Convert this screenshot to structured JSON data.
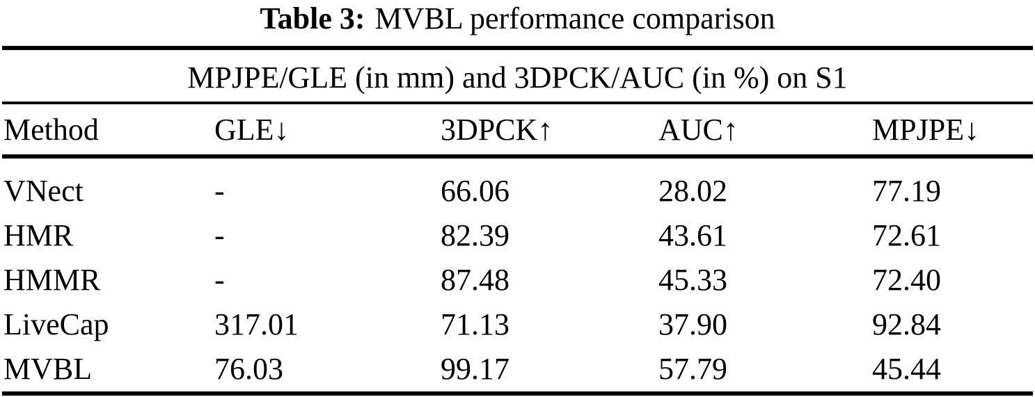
{
  "page": {
    "background_color": "#ffffff",
    "text_color": "#000000"
  },
  "caption": {
    "label": "Table 3:",
    "title": "MVBL performance comparison"
  },
  "table": {
    "span_header": "MPJPE/GLE (in mm) and 3DPCK/AUC (in %) on S1",
    "columns": [
      {
        "key": "method",
        "label": "Method"
      },
      {
        "key": "gle",
        "label": "GLE↓"
      },
      {
        "key": "pck3d",
        "label": "3DPCK↑"
      },
      {
        "key": "auc",
        "label": "AUC↑"
      },
      {
        "key": "mpjpe",
        "label": "MPJPE↓"
      }
    ],
    "rows": [
      {
        "method": "VNect",
        "gle": "-",
        "pck3d": "66.06",
        "auc": "28.02",
        "mpjpe": "77.19"
      },
      {
        "method": "HMR",
        "gle": "-",
        "pck3d": "82.39",
        "auc": "43.61",
        "mpjpe": "72.61"
      },
      {
        "method": "HMMR",
        "gle": "-",
        "pck3d": "87.48",
        "auc": "45.33",
        "mpjpe": "72.40"
      },
      {
        "method": "LiveCap",
        "gle": "317.01",
        "pck3d": "71.13",
        "auc": "37.90",
        "mpjpe": "92.84"
      },
      {
        "method": "MVBL",
        "gle": "76.03",
        "pck3d": "99.17",
        "auc": "57.79",
        "mpjpe": "45.44"
      }
    ]
  }
}
